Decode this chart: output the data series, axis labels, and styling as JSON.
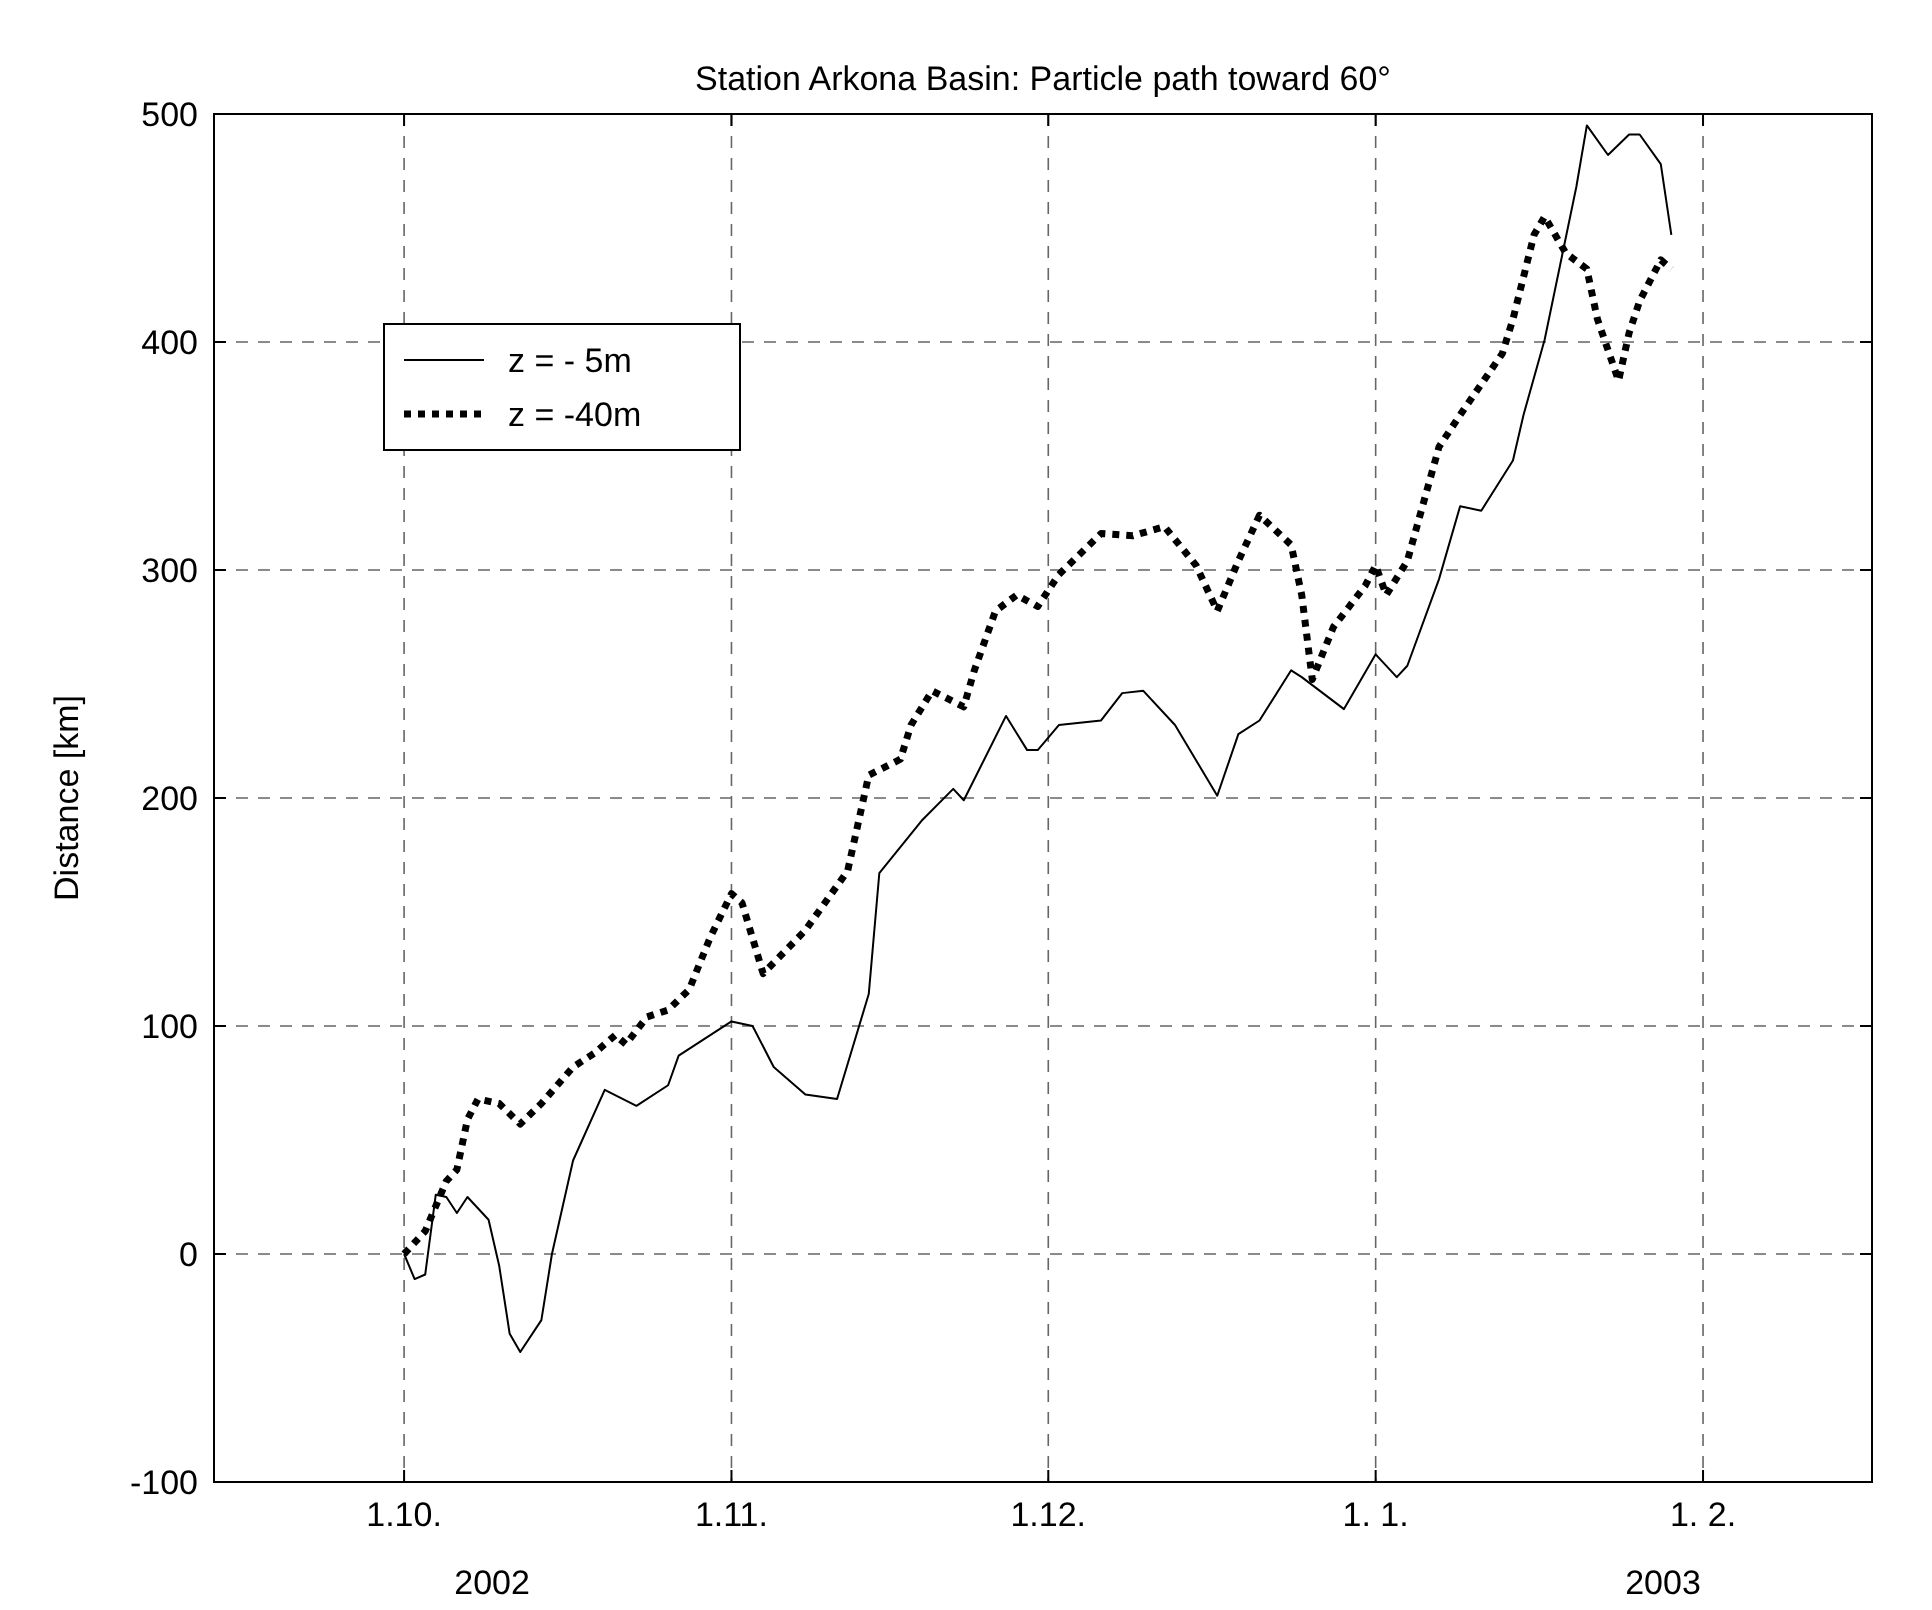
{
  "chart_data": {
    "type": "line",
    "title": "Station Arkona Basin: Particle path toward 60°",
    "ylabel": "Distance [km]",
    "xlim": [
      "2002-09-13",
      "2003-02-17"
    ],
    "xticks": [
      {
        "value": "2002-10-01",
        "label": "1.10."
      },
      {
        "value": "2002-11-01",
        "label": "1.11."
      },
      {
        "value": "2002-12-01",
        "label": "1.12."
      },
      {
        "value": "2003-01-01",
        "label": "1. 1."
      },
      {
        "value": "2003-02-01",
        "label": "1. 2."
      }
    ],
    "ylim": [
      -100,
      500
    ],
    "yticks": [
      -100,
      0,
      100,
      200,
      300,
      400,
      500
    ],
    "grid": true,
    "legend": "top left",
    "annotations": [
      "2002",
      "2003"
    ],
    "series": [
      {
        "name": "z = - 5m",
        "color": "#000000",
        "line_style": "solid",
        "x": [
          "2002-10-01",
          "2002-10-02",
          "2002-10-03",
          "2002-10-04",
          "2002-10-05",
          "2002-10-06",
          "2002-10-07",
          "2002-10-09",
          "2002-10-10",
          "2002-10-11",
          "2002-10-12",
          "2002-10-14",
          "2002-10-15",
          "2002-10-17",
          "2002-10-20",
          "2002-10-23",
          "2002-10-26",
          "2002-10-27",
          "2002-11-01",
          "2002-11-03",
          "2002-11-05",
          "2002-11-08",
          "2002-11-11",
          "2002-11-14",
          "2002-11-15",
          "2002-11-19",
          "2002-11-22",
          "2002-11-23",
          "2002-11-27",
          "2002-11-29",
          "2002-11-30",
          "2002-12-02",
          "2002-12-06",
          "2002-12-08",
          "2002-12-10",
          "2002-12-13",
          "2002-12-17",
          "2002-12-19",
          "2002-12-21",
          "2002-12-24",
          "2002-12-25",
          "2002-12-29",
          "2003-01-01",
          "2003-01-03",
          "2003-01-04",
          "2003-01-07",
          "2003-01-09",
          "2003-01-11",
          "2003-01-14",
          "2003-01-15",
          "2003-01-17",
          "2003-01-20",
          "2003-01-21",
          "2003-01-23",
          "2003-01-25",
          "2003-01-26",
          "2003-01-28",
          "2003-01-29"
        ],
        "values": [
          0,
          -11,
          -9,
          26,
          25,
          18,
          25,
          15,
          -5,
          -35,
          -43,
          -29,
          0,
          41,
          72,
          65,
          74,
          87,
          102,
          100,
          82,
          70,
          68,
          114,
          167,
          190,
          204,
          199,
          236,
          221,
          221,
          232,
          234,
          246,
          247,
          232,
          201,
          228,
          234,
          256,
          253,
          239,
          263,
          253,
          258,
          296,
          328,
          326,
          348,
          368,
          401,
          468,
          495,
          482,
          491,
          491,
          478,
          447
        ]
      },
      {
        "name": "z = -40m",
        "color": "#000000",
        "line_style": "dotted",
        "x": [
          "2002-10-01",
          "2002-10-03",
          "2002-10-04",
          "2002-10-05",
          "2002-10-06",
          "2002-10-07",
          "2002-10-08",
          "2002-10-10",
          "2002-10-12",
          "2002-10-14",
          "2002-10-17",
          "2002-10-19",
          "2002-10-21",
          "2002-10-22",
          "2002-10-24",
          "2002-10-26",
          "2002-10-28",
          "2002-10-30",
          "2002-11-01",
          "2002-11-02",
          "2002-11-04",
          "2002-11-08",
          "2002-11-12",
          "2002-11-14",
          "2002-11-17",
          "2002-11-18",
          "2002-11-20",
          "2002-11-23",
          "2002-11-24",
          "2002-11-26",
          "2002-11-28",
          "2002-11-30",
          "2002-12-02",
          "2002-12-06",
          "2002-12-09",
          "2002-12-12",
          "2002-12-15",
          "2002-12-17",
          "2002-12-19",
          "2002-12-21",
          "2002-12-24",
          "2002-12-25",
          "2002-12-26",
          "2002-12-28",
          "2002-12-31",
          "2003-01-01",
          "2003-01-02",
          "2003-01-04",
          "2003-01-07",
          "2003-01-09",
          "2003-01-13",
          "2003-01-14",
          "2003-01-16",
          "2003-01-17",
          "2003-01-19",
          "2003-01-21",
          "2003-01-22",
          "2003-01-24",
          "2003-01-25",
          "2003-01-26",
          "2003-01-28",
          "2003-01-29"
        ],
        "values": [
          0,
          10,
          21,
          32,
          37,
          59,
          68,
          66,
          57,
          66,
          82,
          88,
          96,
          92,
          104,
          107,
          116,
          139,
          158,
          154,
          123,
          142,
          168,
          210,
          217,
          232,
          247,
          240,
          256,
          282,
          289,
          284,
          298,
          316,
          315,
          319,
          302,
          282,
          304,
          324,
          311,
          289,
          252,
          275,
          293,
          302,
          289,
          304,
          354,
          368,
          395,
          410,
          447,
          455,
          439,
          432,
          410,
          383,
          404,
          418,
          436,
          432
        ]
      }
    ]
  }
}
